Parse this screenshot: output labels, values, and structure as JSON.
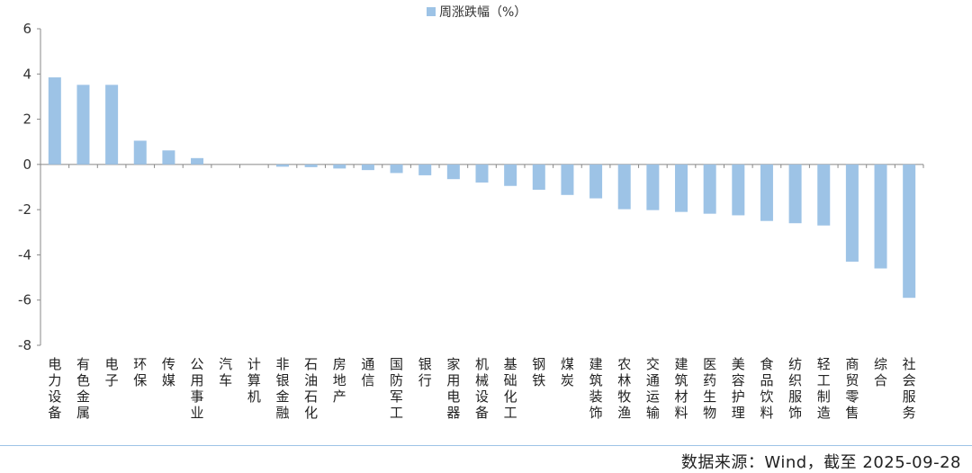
{
  "chart_data": {
    "type": "bar",
    "series": [
      {
        "name": "周涨跌幅（%）",
        "color": "#9dc3e6",
        "values": [
          3.85,
          3.52,
          3.52,
          1.05,
          0.62,
          0.28,
          0.0,
          0.0,
          -0.1,
          -0.12,
          -0.18,
          -0.25,
          -0.38,
          -0.48,
          -0.65,
          -0.8,
          -0.95,
          -1.12,
          -1.35,
          -1.5,
          -1.98,
          -2.02,
          -2.1,
          -2.18,
          -2.25,
          -2.5,
          -2.6,
          -2.7,
          -4.3,
          -4.6,
          -5.9
        ]
      }
    ],
    "categories": [
      "电力设备",
      "有色金属",
      "电子",
      "环保",
      "传媒",
      "公用事业",
      "汽车",
      "计算机",
      "非银金融",
      "石油石化",
      "房地产",
      "通信",
      "国防军工",
      "银行",
      "家用电器",
      "机械设备",
      "基础化工",
      "钢铁",
      "煤炭",
      "建筑装饰",
      "农林牧渔",
      "交通运输",
      "建筑材料",
      "医药生物",
      "美容护理",
      "食品饮料",
      "纺织服饰",
      "轻工制造",
      "商贸零售",
      "综合",
      "社会服务"
    ],
    "ylim": [
      -8,
      6
    ],
    "yticks": [
      "6",
      "4",
      "2",
      "0",
      "-2",
      "-4",
      "-6",
      "-8"
    ],
    "grid": false,
    "legend_position": "top-center",
    "xlabel": "",
    "ylabel": ""
  },
  "source_note": "数据来源：Wind，截至 2025-09-28"
}
